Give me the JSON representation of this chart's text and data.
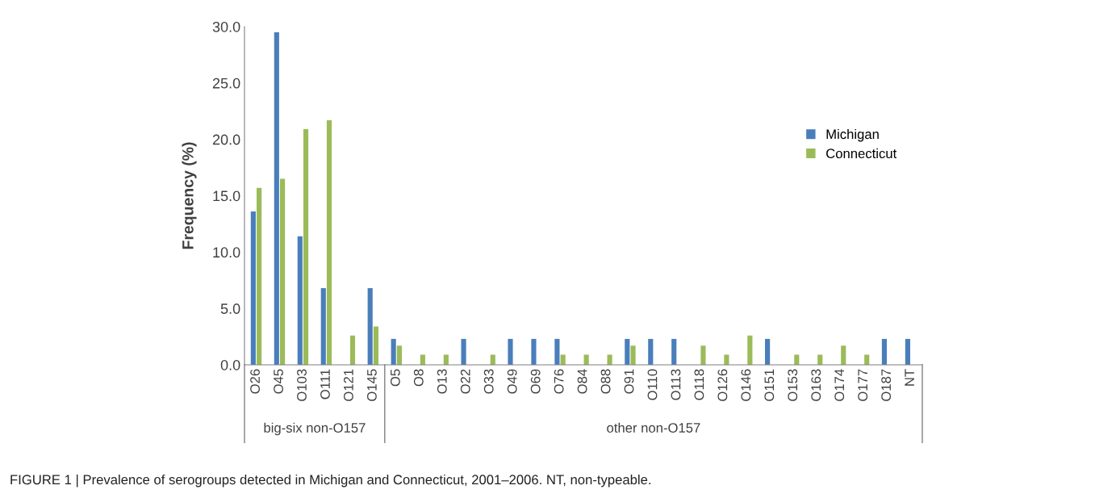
{
  "chart_data": {
    "type": "bar",
    "ylabel": "Frequency (%)",
    "categories": [
      "O26",
      "O45",
      "O103",
      "O111",
      "O121",
      "O145",
      "O5",
      "O8",
      "O13",
      "O22",
      "O33",
      "O49",
      "O69",
      "O76",
      "O84",
      "O88",
      "O91",
      "O110",
      "O113",
      "O118",
      "O126",
      "O146",
      "O151",
      "O153",
      "O163",
      "O174",
      "O177",
      "O187",
      "NT"
    ],
    "series": [
      {
        "name": "Michigan",
        "color": "#4a7ebb",
        "values": [
          13.6,
          29.5,
          11.4,
          6.8,
          0,
          6.8,
          2.3,
          0,
          0,
          2.3,
          0,
          2.3,
          2.3,
          2.3,
          0,
          0,
          2.3,
          2.3,
          2.3,
          0,
          0,
          0,
          2.3,
          0,
          0,
          0,
          0,
          2.3,
          2.3
        ]
      },
      {
        "name": "Connecticut",
        "color": "#9bbb59",
        "values": [
          15.7,
          16.5,
          20.9,
          21.7,
          2.6,
          3.4,
          1.7,
          0.9,
          0.9,
          0,
          0.9,
          0,
          0,
          0.9,
          0.9,
          0.9,
          1.7,
          0,
          0,
          1.7,
          0.9,
          2.6,
          0,
          0.9,
          0.9,
          1.7,
          0.9,
          0,
          0
        ]
      }
    ],
    "ylim": [
      0,
      30
    ],
    "yticks": [
      {
        "value": 0,
        "label": "0.0"
      },
      {
        "value": 5,
        "label": "5.0"
      },
      {
        "value": 10,
        "label": "10.0"
      },
      {
        "value": 15,
        "label": "15.0"
      },
      {
        "value": 20,
        "label": "20.0"
      },
      {
        "value": 25,
        "label": "25.0"
      },
      {
        "value": 30,
        "label": "30.0"
      }
    ],
    "grid": false,
    "legend": "right",
    "annotations": [
      "big-six non-O157",
      "other non-O157",
      "FIGURE 1 | Prevalence of serogroups detected in Michigan and Connecticut, 2001–2006. NT, non-typeable."
    ]
  }
}
